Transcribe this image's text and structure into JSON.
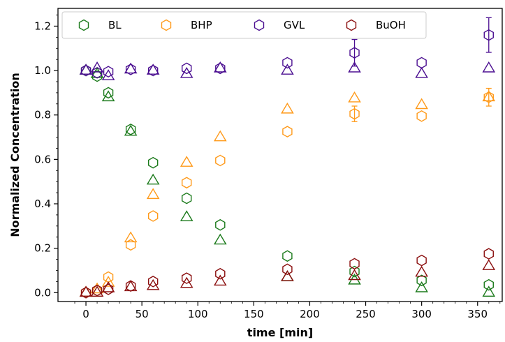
{
  "chart_data": {
    "type": "scatter",
    "xlabel": "time [min]",
    "ylabel": "Normalized Concentration",
    "xlim": [
      -25,
      372
    ],
    "ylim": [
      -0.04,
      1.28
    ],
    "xticks": [
      0,
      50,
      100,
      150,
      200,
      250,
      300,
      350
    ],
    "yticks": [
      0.0,
      0.2,
      0.4,
      0.6,
      0.8,
      1.0,
      1.2
    ],
    "ytick_labels": [
      "0.0",
      "0.2",
      "0.4",
      "0.6",
      "0.8",
      "1.0",
      "1.2"
    ],
    "grid": false,
    "legend_position": "top",
    "legend_columns": 4,
    "marker_note": "hexagons and triangles share the series colour",
    "series": [
      {
        "name": "BL",
        "color": "#1b7a1b",
        "hexagon": [
          [
            0,
            1.0
          ],
          [
            10,
            0.975
          ],
          [
            20,
            0.9
          ],
          [
            40,
            0.735
          ],
          [
            60,
            0.585
          ],
          [
            90,
            0.425
          ],
          [
            120,
            0.305
          ],
          [
            180,
            0.165
          ],
          [
            240,
            0.095
          ],
          [
            300,
            0.055
          ],
          [
            360,
            0.035
          ]
        ],
        "triangle": [
          [
            0,
            1.0
          ],
          [
            10,
            0.985
          ],
          [
            20,
            0.88
          ],
          [
            40,
            0.725
          ],
          [
            60,
            0.505
          ],
          [
            90,
            0.34
          ],
          [
            120,
            0.235
          ],
          [
            180,
            0.07
          ],
          [
            240,
            0.055
          ],
          [
            300,
            0.02
          ],
          [
            360,
            0.0
          ]
        ]
      },
      {
        "name": "BHP",
        "color": "#ff9a1a",
        "hexagon": [
          [
            0,
            0.0
          ],
          [
            10,
            0.01
          ],
          [
            20,
            0.07
          ],
          [
            40,
            0.215
          ],
          [
            60,
            0.345
          ],
          [
            90,
            0.495
          ],
          [
            120,
            0.595
          ],
          [
            180,
            0.725
          ],
          [
            240,
            0.805
          ],
          [
            300,
            0.795
          ],
          [
            360,
            0.88
          ]
        ],
        "hexagon_error": [
          [
            240,
            0.035
          ],
          [
            360,
            0.04
          ]
        ],
        "triangle": [
          [
            0,
            0.0
          ],
          [
            10,
            0.015
          ],
          [
            20,
            0.045
          ],
          [
            40,
            0.245
          ],
          [
            60,
            0.44
          ],
          [
            90,
            0.585
          ],
          [
            120,
            0.7
          ],
          [
            180,
            0.825
          ],
          [
            240,
            0.875
          ],
          [
            300,
            0.845
          ],
          [
            360,
            0.88
          ]
        ]
      },
      {
        "name": "GVL",
        "color": "#4b0f91",
        "hexagon": [
          [
            0,
            1.0
          ],
          [
            10,
            0.99
          ],
          [
            20,
            0.995
          ],
          [
            40,
            1.005
          ],
          [
            60,
            1.0
          ],
          [
            90,
            1.01
          ],
          [
            120,
            1.01
          ],
          [
            180,
            1.035
          ],
          [
            240,
            1.08
          ],
          [
            300,
            1.035
          ],
          [
            360,
            1.16
          ]
        ],
        "hexagon_error": [
          [
            240,
            0.06
          ],
          [
            360,
            0.078
          ]
        ],
        "triangle": [
          [
            0,
            1.0
          ],
          [
            10,
            1.01
          ],
          [
            20,
            0.975
          ],
          [
            40,
            1.005
          ],
          [
            60,
            1.0
          ],
          [
            90,
            0.985
          ],
          [
            120,
            1.01
          ],
          [
            180,
            1.0
          ],
          [
            240,
            1.01
          ],
          [
            300,
            0.985
          ],
          [
            360,
            1.01
          ]
        ]
      },
      {
        "name": "BuOH",
        "color": "#8b0f0f",
        "hexagon": [
          [
            0,
            0.0
          ],
          [
            10,
            0.01
          ],
          [
            20,
            0.015
          ],
          [
            40,
            0.03
          ],
          [
            60,
            0.05
          ],
          [
            90,
            0.065
          ],
          [
            120,
            0.085
          ],
          [
            180,
            0.105
          ],
          [
            240,
            0.13
          ],
          [
            300,
            0.145
          ],
          [
            360,
            0.175
          ]
        ],
        "triangle": [
          [
            0,
            0.0
          ],
          [
            10,
            0.0
          ],
          [
            20,
            0.02
          ],
          [
            40,
            0.025
          ],
          [
            60,
            0.03
          ],
          [
            90,
            0.04
          ],
          [
            120,
            0.05
          ],
          [
            180,
            0.07
          ],
          [
            240,
            0.075
          ],
          [
            300,
            0.09
          ],
          [
            360,
            0.12
          ]
        ]
      }
    ]
  }
}
